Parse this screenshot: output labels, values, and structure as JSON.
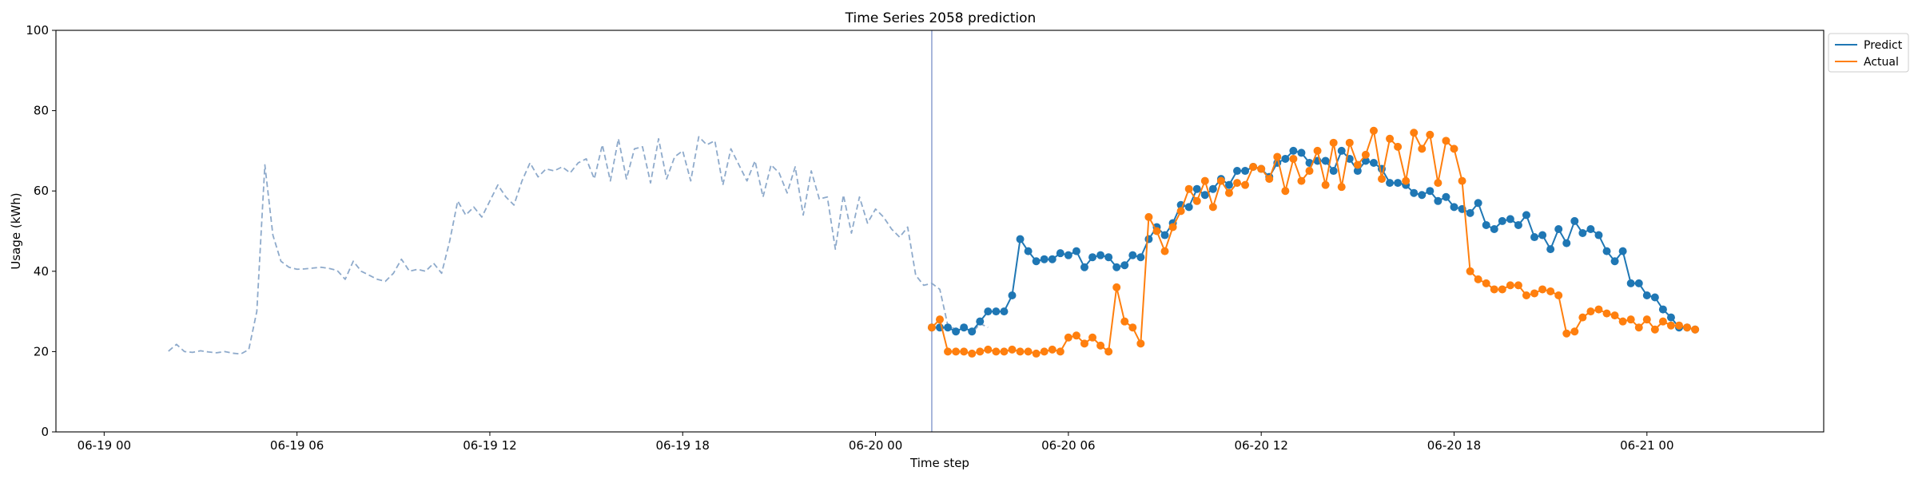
{
  "chart_data": {
    "type": "line",
    "title": "Time Series 2058 prediction",
    "xlabel": "Time step",
    "ylabel": "Usage (kWh)",
    "ylim": [
      0,
      100
    ],
    "yticks": [
      0,
      20,
      40,
      60,
      80,
      100
    ],
    "xticks": [
      "06-19 00",
      "06-19 06",
      "06-19 12",
      "06-19 18",
      "06-20 00",
      "06-20 06",
      "06-20 12",
      "06-20 18",
      "06-21 00"
    ],
    "x_start": "2023-06-19 02:00",
    "x_step_minutes": 15,
    "legend": {
      "location": "upper-right, outside axes",
      "entries": [
        "Predict",
        "Actual"
      ]
    },
    "prediction_start": "06-20 01:45",
    "colors": {
      "history": "#8eaacb",
      "predict": "#1f77b4",
      "actual": "#ff7f0e",
      "divider": "#8c9fd0"
    },
    "series": [
      {
        "name": "",
        "style": "dashed",
        "role": "history",
        "start": "06-19 02:00",
        "values": [
          20.1,
          21.8,
          20.0,
          19.8,
          20.2,
          19.9,
          19.7,
          20.0,
          19.6,
          19.4,
          20.5,
          30.0,
          66.5,
          49.0,
          42.5,
          41.0,
          40.5,
          40.6,
          40.8,
          41.0,
          40.7,
          40.2,
          38.0,
          42.5,
          40.0,
          39.0,
          38.0,
          37.5,
          39.5,
          43.0,
          40.0,
          40.5,
          40.0,
          42.0,
          39.5,
          47.5,
          57.5,
          54.0,
          56.0,
          53.5,
          57.5,
          61.5,
          58.5,
          56.5,
          62.5,
          67.0,
          63.5,
          65.5,
          65.0,
          66.0,
          64.5,
          67.0,
          68.0,
          63.0,
          71.5,
          62.5,
          73.0,
          63.0,
          70.5,
          71.0,
          62.0,
          73.0,
          63.0,
          68.5,
          70.0,
          62.5,
          73.5,
          71.5,
          72.5,
          61.5,
          70.5,
          66.5,
          62.5,
          67.5,
          58.5,
          66.5,
          64.5,
          59.5,
          66.0,
          54.0,
          65.0,
          58.0,
          58.5,
          45.5,
          59.0,
          49.5,
          58.5,
          52.0,
          55.5,
          53.5,
          50.5,
          48.5,
          51.0,
          39.0,
          36.5,
          37.0,
          35.5,
          26.5,
          25.5,
          26.0,
          24.5,
          27.0,
          26.0
        ]
      },
      {
        "name": "Predict",
        "style": "solid-markers",
        "start": "06-20 01:45",
        "values": [
          26.0,
          26.0,
          26.0,
          25.0,
          26.0,
          25.0,
          27.5,
          30.0,
          30.0,
          30.0,
          34.0,
          48.0,
          45.0,
          42.5,
          43.0,
          43.0,
          44.5,
          44.0,
          45.0,
          41.0,
          43.5,
          44.0,
          43.5,
          41.0,
          41.5,
          44.0,
          43.5,
          48.0,
          51.0,
          49.0,
          52.0,
          56.5,
          56.0,
          60.5,
          59.0,
          60.5,
          63.0,
          61.5,
          65.0,
          65.0,
          66.0,
          65.5,
          63.5,
          67.0,
          68.0,
          70.0,
          69.5,
          67.0,
          67.5,
          67.5,
          65.0,
          70.0,
          68.0,
          65.0,
          67.5,
          67.0,
          65.5,
          62.0,
          62.0,
          61.5,
          59.5,
          59.0,
          60.0,
          57.5,
          58.5,
          56.0,
          55.5,
          54.5,
          57.0,
          51.5,
          50.5,
          52.5,
          53.0,
          51.5,
          54.0,
          48.5,
          49.0,
          45.5,
          50.5,
          47.0,
          52.5,
          49.5,
          50.5,
          49.0,
          45.0,
          42.5,
          45.0,
          37.0,
          37.0,
          34.0,
          33.5,
          30.5,
          28.5,
          26.0,
          26.0,
          25.5
        ]
      },
      {
        "name": "Actual",
        "style": "solid-markers",
        "start": "06-20 01:45",
        "values": [
          26.0,
          28.0,
          20.0,
          20.0,
          20.0,
          19.5,
          20.0,
          20.5,
          20.0,
          20.0,
          20.5,
          20.0,
          20.0,
          19.5,
          20.0,
          20.5,
          20.0,
          23.5,
          24.0,
          22.0,
          23.5,
          21.5,
          20.0,
          36.0,
          27.5,
          26.0,
          22.0,
          53.5,
          50.0,
          45.0,
          51.0,
          55.0,
          60.5,
          57.5,
          62.5,
          56.0,
          62.5,
          59.5,
          62.0,
          61.5,
          66.0,
          65.5,
          63.0,
          68.5,
          60.0,
          68.0,
          62.5,
          65.0,
          70.0,
          61.5,
          72.0,
          61.0,
          72.0,
          66.5,
          69.0,
          75.0,
          63.0,
          73.0,
          71.0,
          62.5,
          74.5,
          70.5,
          74.0,
          62.0,
          72.5,
          70.5,
          62.5,
          40.0,
          38.0,
          37.0,
          35.5,
          35.5,
          36.5,
          36.5,
          34.0,
          34.5,
          35.5,
          35.0,
          34.0,
          24.5,
          25.0,
          28.5,
          30.0,
          30.5,
          29.5,
          29.0,
          27.5,
          28.0,
          26.0,
          28.0,
          25.5,
          27.5,
          26.5,
          26.5,
          26.0,
          25.5
        ]
      }
    ]
  }
}
